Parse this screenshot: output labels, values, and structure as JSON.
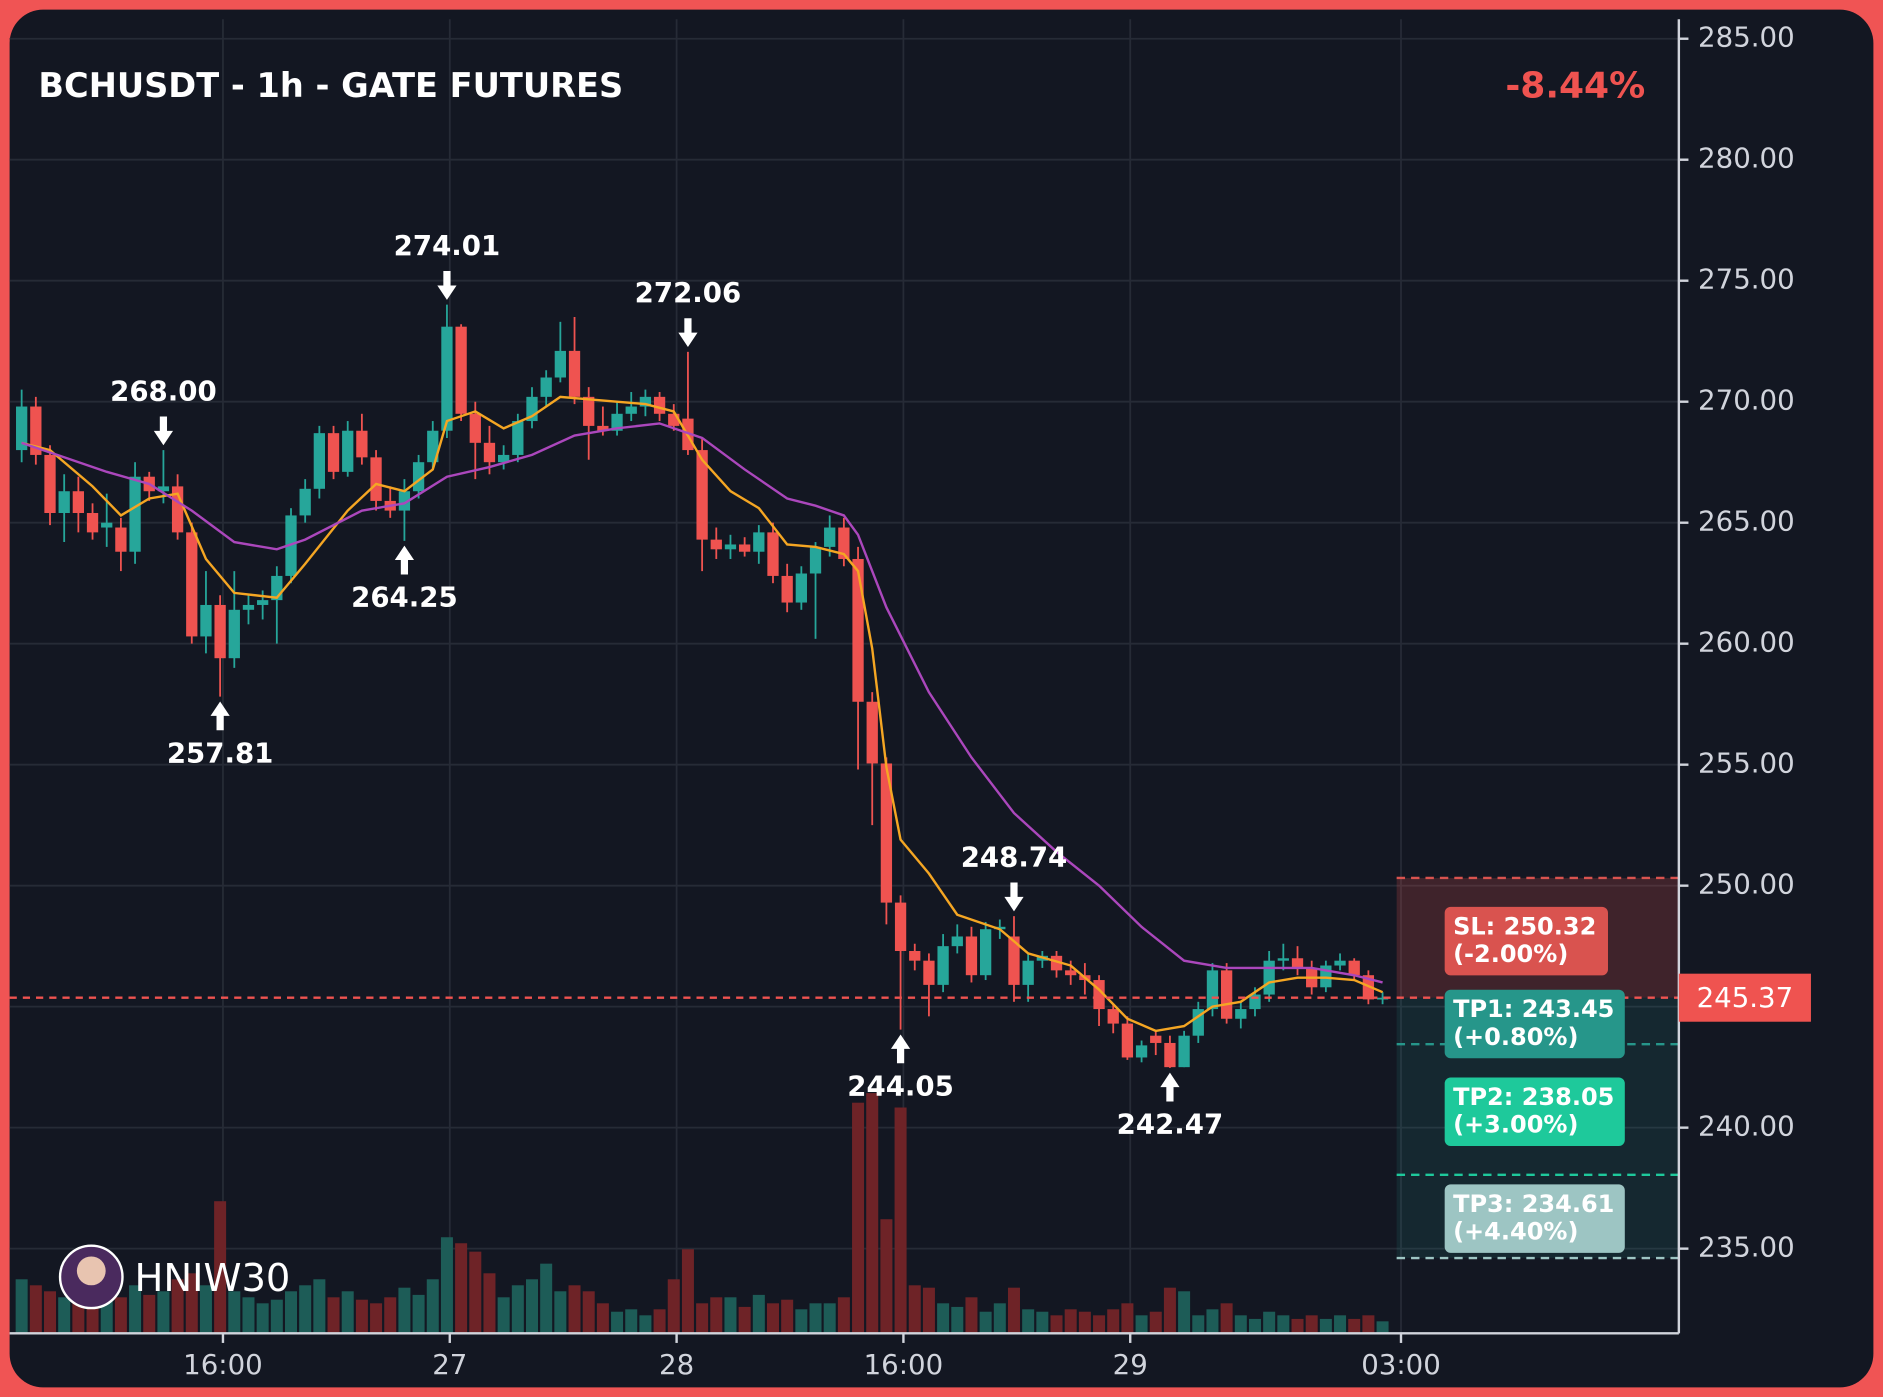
{
  "chart_data": {
    "type": "candlestick",
    "title": "BCHUSDT - 1h - GATE FUTURES",
    "change": "-8.44%",
    "watermark": "HNIW30",
    "up_color": "#26a69a",
    "down_color": "#ef5350",
    "volume_up_color": "#1d5c57",
    "volume_down_color": "#6e2327",
    "grid": true,
    "xlim": [
      -0.85,
      116.9
    ],
    "ylim": [
      231.5,
      286.6
    ],
    "xticks": [
      {
        "value": 14.2,
        "label": "16:00"
      },
      {
        "value": 30.2,
        "label": "27"
      },
      {
        "value": 46.2,
        "label": "28"
      },
      {
        "value": 62.2,
        "label": "16:00"
      },
      {
        "value": 78.2,
        "label": "29"
      },
      {
        "value": 97.3,
        "label": "03:00"
      }
    ],
    "yticks": [
      {
        "value": 235,
        "label": "235.00"
      },
      {
        "value": 240,
        "label": "240.00"
      },
      {
        "value": 245,
        "label": "245.00"
      },
      {
        "value": 250,
        "label": "250.00"
      },
      {
        "value": 255,
        "label": "255.00"
      },
      {
        "value": 260,
        "label": "260.00"
      },
      {
        "value": 265,
        "label": "265.00"
      },
      {
        "value": 270,
        "label": "270.00"
      },
      {
        "value": 275,
        "label": "275.00"
      },
      {
        "value": 280,
        "label": "280.00"
      },
      {
        "value": 285,
        "label": "285.00"
      }
    ],
    "open": [
      268.0,
      269.8,
      267.8,
      265.4,
      266.3,
      265.4,
      264.8,
      264.8,
      263.8,
      266.9,
      266.3,
      266.5,
      264.6,
      260.3,
      261.6,
      259.4,
      261.4,
      261.6,
      261.8,
      262.8,
      265.3,
      266.4,
      268.7,
      267.1,
      268.8,
      267.7,
      265.9,
      265.5,
      266.3,
      267.5,
      268.8,
      273.1,
      269.5,
      268.3,
      267.5,
      267.8,
      269.2,
      270.2,
      271.0,
      272.1,
      270.2,
      269.0,
      268.8,
      269.5,
      269.8,
      270.2,
      269.5,
      269.3,
      268.0,
      264.3,
      263.9,
      264.1,
      263.8,
      264.6,
      262.8,
      261.7,
      262.9,
      264.0,
      264.8,
      263.5,
      257.6,
      255.05,
      249.3,
      247.3,
      246.9,
      245.9,
      247.5,
      247.9,
      246.3,
      248.2,
      247.9,
      245.9,
      246.9,
      247.1,
      246.5,
      246.3,
      246.1,
      244.9,
      244.3,
      242.9,
      243.8,
      243.5,
      242.5,
      243.8,
      244.9,
      246.5,
      244.5,
      244.9,
      245.5,
      246.9,
      247.0,
      246.6,
      245.8,
      246.7,
      246.9,
      246.3,
      245.3
    ],
    "high": [
      270.5,
      270.2,
      268.2,
      267.0,
      266.9,
      265.8,
      266.2,
      265.2,
      267.5,
      267.1,
      268.0,
      267.0,
      265.0,
      263.0,
      262.0,
      263.0,
      262.0,
      262.2,
      263.2,
      265.6,
      266.8,
      269.0,
      269.0,
      269.2,
      269.5,
      268.0,
      266.5,
      266.8,
      267.8,
      269.2,
      274.01,
      273.2,
      270.0,
      269.0,
      268.2,
      269.5,
      270.6,
      271.3,
      273.3,
      273.5,
      270.6,
      269.8,
      270.0,
      270.4,
      270.5,
      270.4,
      269.9,
      272.06,
      268.5,
      264.8,
      264.5,
      264.4,
      264.9,
      265.0,
      263.3,
      263.2,
      264.2,
      265.3,
      265.2,
      264.0,
      258.0,
      255.3,
      249.6,
      247.6,
      247.2,
      248.0,
      248.4,
      248.3,
      248.5,
      248.6,
      248.74,
      247.2,
      247.3,
      247.3,
      246.9,
      246.8,
      246.3,
      245.1,
      244.6,
      243.6,
      244.0,
      243.8,
      244.0,
      245.2,
      246.8,
      246.8,
      245.2,
      245.8,
      247.3,
      247.6,
      247.5,
      246.9,
      246.9,
      247.2,
      247.0,
      246.5,
      245.6
    ],
    "low": [
      267.5,
      267.4,
      264.9,
      264.2,
      264.6,
      264.3,
      264.0,
      263.0,
      263.3,
      265.9,
      265.8,
      264.3,
      260.0,
      259.6,
      257.81,
      259.0,
      260.8,
      261.0,
      260.0,
      262.5,
      265.0,
      266.0,
      266.8,
      266.9,
      267.4,
      265.5,
      265.2,
      264.25,
      266.0,
      267.2,
      268.5,
      269.2,
      266.8,
      267.0,
      267.2,
      267.5,
      268.9,
      269.8,
      270.8,
      269.9,
      267.6,
      268.6,
      268.6,
      269.2,
      269.4,
      269.2,
      268.8,
      267.8,
      263.0,
      263.5,
      263.5,
      263.6,
      263.3,
      262.5,
      261.3,
      261.4,
      260.2,
      263.6,
      263.2,
      254.8,
      252.5,
      248.4,
      244.05,
      246.5,
      244.6,
      245.6,
      247.2,
      246.0,
      246.1,
      247.8,
      245.2,
      245.2,
      246.6,
      246.2,
      245.9,
      245.5,
      244.2,
      243.9,
      242.8,
      242.7,
      243.0,
      242.47,
      242.5,
      243.5,
      244.6,
      244.3,
      244.1,
      244.6,
      245.2,
      246.5,
      246.3,
      245.5,
      245.6,
      246.5,
      246.1,
      245.1,
      245.1
    ],
    "close": [
      269.8,
      267.8,
      265.4,
      266.3,
      265.4,
      264.6,
      265.0,
      263.8,
      266.9,
      266.3,
      266.5,
      264.6,
      260.3,
      261.6,
      259.4,
      261.4,
      261.6,
      261.8,
      262.8,
      265.3,
      266.4,
      268.7,
      267.1,
      268.8,
      267.7,
      265.9,
      265.5,
      266.3,
      267.5,
      268.8,
      273.1,
      269.5,
      268.3,
      267.5,
      267.8,
      269.2,
      270.2,
      271.0,
      272.1,
      270.2,
      269.0,
      268.8,
      269.5,
      269.8,
      270.2,
      269.5,
      269.0,
      268.0,
      264.3,
      263.9,
      264.1,
      263.8,
      264.6,
      262.8,
      261.7,
      262.9,
      264.0,
      264.8,
      263.5,
      257.6,
      255.05,
      249.3,
      247.3,
      246.9,
      245.9,
      247.5,
      247.9,
      246.3,
      248.2,
      248.3,
      245.9,
      246.9,
      247.1,
      246.5,
      246.3,
      246.1,
      244.9,
      244.3,
      242.9,
      243.4,
      243.5,
      242.5,
      243.8,
      244.9,
      246.5,
      244.5,
      244.9,
      245.5,
      246.9,
      247.0,
      246.6,
      245.8,
      246.7,
      246.9,
      246.3,
      245.3,
      245.37
    ],
    "volume": [
      45,
      40,
      35,
      30,
      28,
      35,
      38,
      30,
      40,
      32,
      35,
      45,
      50,
      40,
      110,
      35,
      30,
      25,
      28,
      35,
      40,
      45,
      30,
      35,
      28,
      25,
      30,
      38,
      32,
      45,
      80,
      75,
      68,
      50,
      30,
      40,
      45,
      58,
      35,
      40,
      35,
      25,
      18,
      20,
      15,
      20,
      45,
      70,
      25,
      30,
      30,
      22,
      32,
      25,
      28,
      20,
      25,
      25,
      30,
      192,
      200,
      95,
      188,
      40,
      38,
      25,
      22,
      30,
      18,
      25,
      38,
      20,
      18,
      15,
      20,
      18,
      15,
      20,
      25,
      15,
      18,
      38,
      35,
      15,
      20,
      25,
      15,
      12,
      18,
      15,
      12,
      15,
      12,
      15,
      12,
      15,
      10
    ],
    "lines": [
      {
        "color": "#f5a623",
        "x": [
          0,
          2,
          5,
          7,
          9,
          11,
          13,
          15,
          18,
          20,
          23,
          25,
          27,
          29,
          30,
          32,
          34,
          36,
          38,
          40,
          44,
          46,
          48,
          50,
          52,
          54,
          56,
          58,
          59,
          60,
          61,
          62,
          64,
          66,
          69,
          71,
          74,
          76,
          78,
          80,
          82,
          84,
          86,
          88,
          90,
          92,
          94,
          96
        ],
        "values": [
          268.3,
          268,
          266.5,
          265.3,
          266,
          266.2,
          263.5,
          262.1,
          261.9,
          263.3,
          265.5,
          266.6,
          266.3,
          267.2,
          269.2,
          269.6,
          268.9,
          269.4,
          270.2,
          270.1,
          269.9,
          269.6,
          267.6,
          266.3,
          265.6,
          264.1,
          264,
          263.7,
          263.0,
          259.8,
          254.9,
          251.9,
          250.5,
          248.8,
          248.2,
          247.2,
          246.7,
          245.7,
          244.5,
          244,
          244.2,
          245,
          245.2,
          246,
          246.2,
          246.2,
          246.1,
          245.6
        ]
      },
      {
        "color": "#ab47bc",
        "x": [
          0,
          3,
          6,
          9,
          12,
          15,
          18,
          20,
          24,
          27,
          30,
          33,
          36,
          39,
          42,
          45,
          48,
          51,
          54,
          56,
          58,
          59,
          61,
          64,
          67,
          70,
          73,
          76,
          79,
          82,
          85,
          88,
          91,
          94,
          96
        ],
        "values": [
          268.3,
          267.7,
          267.1,
          266.6,
          265.5,
          264.2,
          263.9,
          264.3,
          265.5,
          265.8,
          266.9,
          267.3,
          267.8,
          268.6,
          268.9,
          269.1,
          268.5,
          267.2,
          266,
          265.7,
          265.3,
          264.5,
          261.5,
          258,
          255.3,
          253,
          251.4,
          250,
          248.3,
          246.9,
          246.6,
          246.6,
          246.6,
          246.3,
          246
        ]
      }
    ],
    "annotations": [
      {
        "x": 10,
        "value": 268,
        "label": "268.00",
        "position": "above"
      },
      {
        "x": 14,
        "value": 257.81,
        "label": "257.81",
        "position": "below"
      },
      {
        "x": 27,
        "value": 264.25,
        "label": "264.25",
        "position": "below"
      },
      {
        "x": 30,
        "value": 274.01,
        "label": "274.01",
        "position": "above"
      },
      {
        "x": 47,
        "value": 272.06,
        "label": "272.06",
        "position": "above"
      },
      {
        "x": 62,
        "value": 244.05,
        "label": "244.05",
        "position": "below"
      },
      {
        "x": 70,
        "value": 248.74,
        "label": "248.74",
        "position": "above"
      },
      {
        "x": 81,
        "value": 242.47,
        "label": "242.47",
        "position": "below"
      }
    ],
    "current_price": {
      "value": 245.37,
      "label": "245.37",
      "color": "#ef5350"
    },
    "levels": [
      {
        "label": "SL: 250.32",
        "pct": "(-2.00%)",
        "value": 250.32,
        "color": "#d9534f"
      },
      {
        "label": "TP1: 243.45",
        "pct": "(+0.80%)",
        "value": 243.45,
        "color": "#26968a"
      },
      {
        "label": "TP2: 238.05",
        "pct": "(+3.00%)",
        "value": 238.05,
        "color": "#1ec99b"
      },
      {
        "label": "TP3: 234.61",
        "pct": "(+4.40%)",
        "value": 234.61,
        "color": "#9dc5c3"
      }
    ]
  }
}
